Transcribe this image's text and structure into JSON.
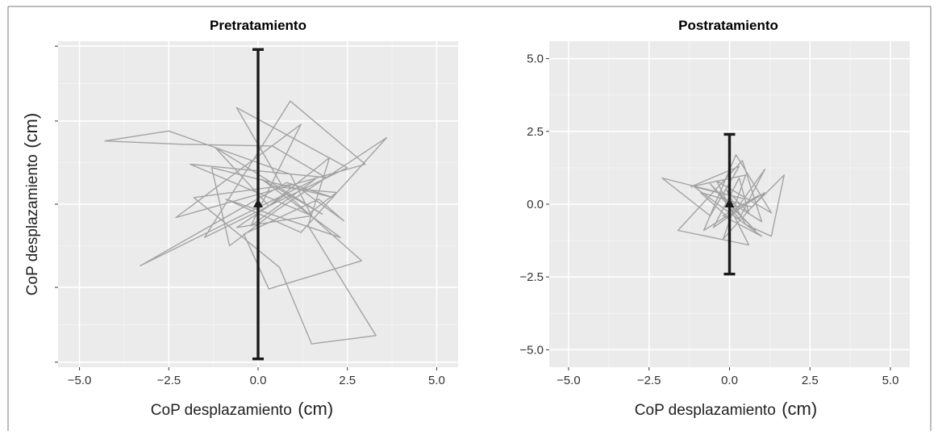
{
  "chart_data": [
    {
      "type": "line",
      "title": "Pretratamiento",
      "xlabel": "CoP desplazamiento",
      "xlabel_unit": "(cm)",
      "ylabel": "CoP desplazamiento",
      "ylabel_unit": "(cm)",
      "xlim": [
        -5.6,
        5.6
      ],
      "ylim": [
        -9.8,
        9.8
      ],
      "xticks": [
        -5.0,
        -2.5,
        0.0,
        2.5,
        5.0
      ],
      "xtick_labels": [
        "−5.0",
        "−2.5",
        "0.0",
        "2.5",
        "5.0"
      ],
      "yticks": [
        -9.5,
        -5.0,
        0.0,
        5.0,
        9.5
      ],
      "ytick_labels": [
        "",
        "",
        "",
        "",
        ""
      ],
      "grid": true,
      "series": [
        {
          "kind": "trajectory",
          "color": "#a3a3a3",
          "x": [
            -4.3,
            -2.1,
            0.4,
            1.9,
            -1.9,
            1.4,
            2.2,
            0.7,
            -0.6,
            2.5,
            -1.5,
            0.9,
            3.0,
            -2.3,
            1.2,
            -0.2,
            1.6,
            -3.3,
            0.8,
            2.1,
            -1.3,
            -0.8,
            0.5,
            3.6,
            1.2,
            -0.9,
            2.3,
            0.1,
            1.8,
            -1.2,
            0.3,
            2.0,
            1.4,
            3.3,
            1.5,
            0.6,
            -1.8,
            1.0,
            2.4,
            1.7,
            -0.4,
            0.3,
            2.9,
            0.8,
            -0.6,
            1.5,
            0.9,
            -2.5,
            -4.3
          ],
          "y": [
            3.8,
            3.6,
            3.5,
            1.6,
            2.4,
            -0.6,
            0.7,
            1.0,
            5.8,
            2.2,
            -2.0,
            6.2,
            2.4,
            -0.8,
            4.8,
            -1.3,
            1.5,
            -3.7,
            1.3,
            0.4,
            2.2,
            -2.5,
            -0.4,
            4.0,
            -1.7,
            0.3,
            -2.0,
            1.5,
            -0.6,
            3.4,
            -0.1,
            2.8,
            -1.3,
            -7.9,
            -8.4,
            -3.8,
            0.4,
            1.2,
            -1.0,
            0.3,
            -1.8,
            -5.1,
            -3.4,
            0.6,
            -1.4,
            -0.7,
            1.8,
            4.4,
            3.8
          ]
        },
        {
          "kind": "mean_with_error_bar",
          "color": "#1a1a1a",
          "x": [
            0.0
          ],
          "y": [
            0.0
          ],
          "yerr": [
            9.3
          ]
        }
      ]
    },
    {
      "type": "line",
      "title": "Postratamiento",
      "xlabel": "CoP desplazamiento",
      "xlabel_unit": "(cm)",
      "ylabel": "",
      "xlim": [
        -5.6,
        5.6
      ],
      "ylim": [
        -5.6,
        5.6
      ],
      "xticks": [
        -5.0,
        -2.5,
        0.0,
        2.5,
        5.0
      ],
      "xtick_labels": [
        "−5.0",
        "−2.5",
        "0.0",
        "2.5",
        "5.0"
      ],
      "yticks": [
        -5.0,
        -2.5,
        0.0,
        2.5,
        5.0
      ],
      "ytick_labels": [
        "−5.0",
        "−2.5",
        "0.0",
        "2.5",
        "5.0"
      ],
      "grid": true,
      "series": [
        {
          "kind": "trajectory",
          "color": "#a3a3a3",
          "x": [
            -2.1,
            -0.6,
            0.3,
            -1.2,
            0.5,
            -0.2,
            1.1,
            -0.8,
            0.2,
            1.3,
            -0.4,
            0.6,
            -1.6,
            0.4,
            1.0,
            -0.3,
            0.8,
            -0.6,
            0.3,
            1.1,
            0.0,
            -0.9,
            0.7,
            1.7,
            1.3,
            0.5,
            -0.1,
            0.6,
            0.3,
            -0.5,
            0.9,
            -0.2,
            1.0,
            -1.1,
            0.4,
            -2.1
          ],
          "y": [
            0.9,
            -0.4,
            1.3,
            0.6,
            1.0,
            -1.2,
            0.4,
            -0.9,
            1.7,
            -0.3,
            0.8,
            -1.4,
            -0.9,
            1.5,
            -0.6,
            0.3,
            -0.9,
            0.7,
            -0.5,
            1.2,
            -0.5,
            0.4,
            -0.1,
            1.0,
            -1.1,
            -0.7,
            0.5,
            -0.3,
            0.9,
            -0.8,
            0.3,
            -0.4,
            -1.1,
            0.6,
            0.2,
            0.9
          ]
        },
        {
          "kind": "mean_with_error_bar",
          "color": "#1a1a1a",
          "x": [
            0.0
          ],
          "y": [
            0.0
          ],
          "yerr": [
            2.4
          ]
        }
      ]
    }
  ]
}
